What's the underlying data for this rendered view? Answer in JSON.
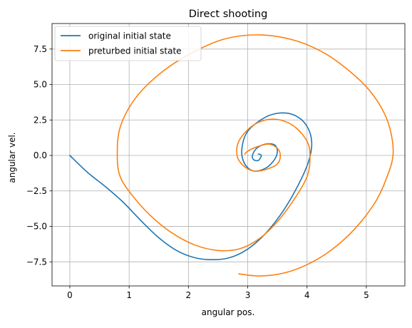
{
  "chart_data": {
    "type": "line",
    "title": "Direct shooting",
    "xlabel": "angular pos.",
    "ylabel": "angular vel.",
    "xlim": [
      -0.3,
      5.65
    ],
    "ylim": [
      -9.2,
      9.3
    ],
    "xticks": [
      0,
      1,
      2,
      3,
      4,
      5
    ],
    "xtick_labels": [
      "0",
      "1",
      "2",
      "3",
      "4",
      "5"
    ],
    "yticks": [
      -7.5,
      -5.0,
      -2.5,
      0.0,
      2.5,
      5.0,
      7.5
    ],
    "ytick_labels": [
      "−7.5",
      "−5.0",
      "−2.5",
      "0.0",
      "2.5",
      "5.0",
      "7.5"
    ],
    "grid": true,
    "legend_position": "upper left",
    "series": [
      {
        "name": "original initial state",
        "color": "#1f77b4",
        "x": [
          0.0,
          0.3,
          0.6,
          0.9,
          1.2,
          1.5,
          1.8,
          2.1,
          2.4,
          2.7,
          3.0,
          3.3,
          3.6,
          3.85,
          4.02,
          4.08,
          4.02,
          3.85,
          3.6,
          3.3,
          3.0,
          2.9,
          2.95,
          3.1,
          3.3,
          3.45,
          3.5,
          3.45,
          3.3,
          3.15,
          3.08,
          3.1,
          3.18,
          3.23,
          3.18
        ],
        "y": [
          0.0,
          -1.2,
          -2.2,
          -3.3,
          -4.6,
          -5.8,
          -6.7,
          -7.2,
          -7.35,
          -7.2,
          -6.6,
          -5.5,
          -3.9,
          -2.1,
          -0.5,
          0.8,
          1.9,
          2.7,
          3.0,
          2.7,
          1.7,
          0.4,
          -0.6,
          -1.1,
          -0.9,
          -0.3,
          0.3,
          0.75,
          0.8,
          0.5,
          0.0,
          -0.3,
          -0.35,
          0.0,
          0.1
        ]
      },
      {
        "name": "preturbed initial state",
        "color": "#ff7f0e",
        "x": [
          2.85,
          3.2,
          3.6,
          4.0,
          4.4,
          4.8,
          5.15,
          5.35,
          5.45,
          5.42,
          5.3,
          5.05,
          4.7,
          4.3,
          3.8,
          3.2,
          2.6,
          2.0,
          1.5,
          1.1,
          0.85,
          0.8,
          0.85,
          1.05,
          1.35,
          1.7,
          2.1,
          2.5,
          2.85,
          3.15,
          3.45,
          3.75,
          4.0,
          4.05,
          4.0,
          3.8,
          3.55,
          3.3,
          3.05,
          2.85,
          2.82,
          2.92,
          3.1,
          3.3,
          3.5,
          3.55,
          3.5,
          3.35,
          3.15,
          3.0,
          2.95
        ],
        "y": [
          -8.35,
          -8.5,
          -8.3,
          -7.7,
          -6.7,
          -5.2,
          -3.3,
          -1.5,
          0.0,
          1.5,
          3.0,
          4.6,
          6.0,
          7.2,
          8.1,
          8.5,
          8.2,
          7.1,
          5.7,
          4.0,
          2.0,
          0.0,
          -1.5,
          -2.8,
          -4.2,
          -5.4,
          -6.3,
          -6.7,
          -6.6,
          -6.0,
          -4.9,
          -3.3,
          -1.5,
          0.0,
          1.0,
          2.0,
          2.5,
          2.5,
          2.0,
          1.0,
          0.0,
          -0.7,
          -1.1,
          -1.0,
          -0.6,
          0.0,
          0.5,
          0.8,
          0.6,
          0.3,
          0.1
        ]
      }
    ]
  }
}
